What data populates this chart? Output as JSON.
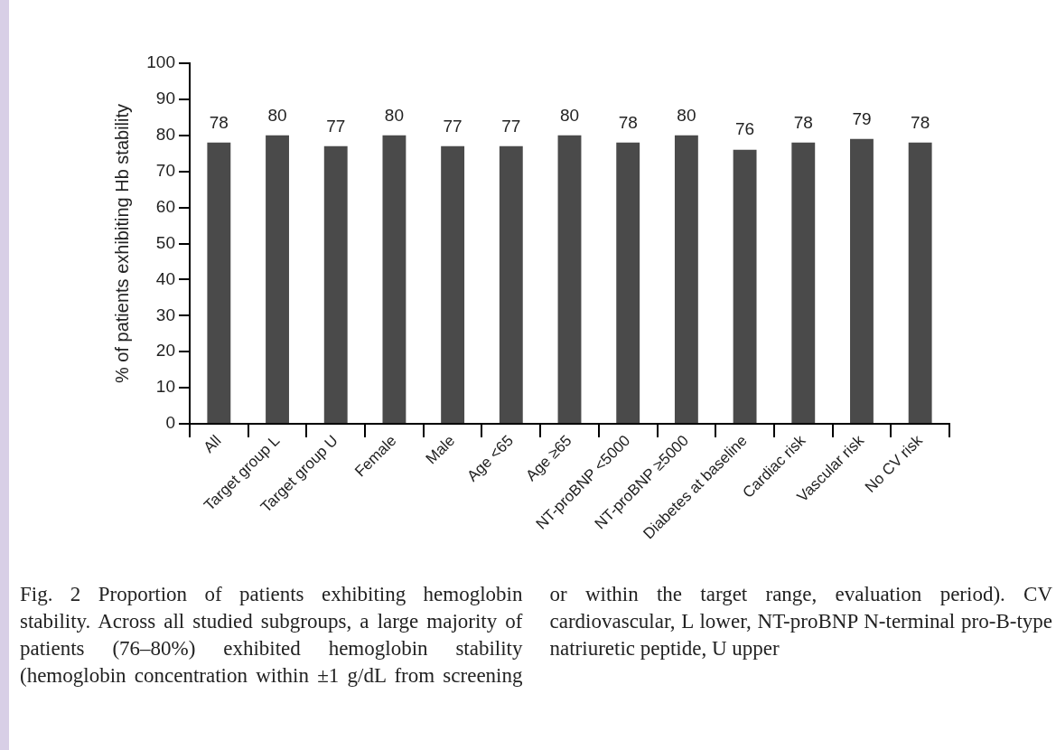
{
  "chart_data": {
    "type": "bar",
    "ylabel": "% of patients exhibiting Hb stability",
    "categories": [
      "All",
      "Target group L",
      "Target group U",
      "Female",
      "Male",
      "Age <65",
      "Age ≥65",
      "NT-proBNP <5000",
      "NT-proBNP ≥5000",
      "Diabetes at baseline",
      "Cardiac risk",
      "Vascular risk",
      "No CV risk"
    ],
    "values": [
      78,
      80,
      77,
      80,
      77,
      77,
      80,
      78,
      80,
      76,
      78,
      79,
      78
    ],
    "color": "#4a4a4a",
    "ylim": [
      0,
      100
    ],
    "yticks": [
      0,
      10,
      20,
      30,
      40,
      50,
      60,
      70,
      80,
      90,
      100
    ],
    "grid": false,
    "data_labels": true,
    "annotations": [
      "Fig. 2 Proportion of patients exhibiting hemoglobin stability. Across all studied subgroups, a large majority of patients (76–80%) exhibited hemoglobin stability (hemoglobin concentration within ±1 g/dL from screening or within the target range, evaluation period). CV cardiovascular, L lower, NT-proBNP N-terminal pro-B-type natriuretic peptide, U upper"
    ]
  }
}
